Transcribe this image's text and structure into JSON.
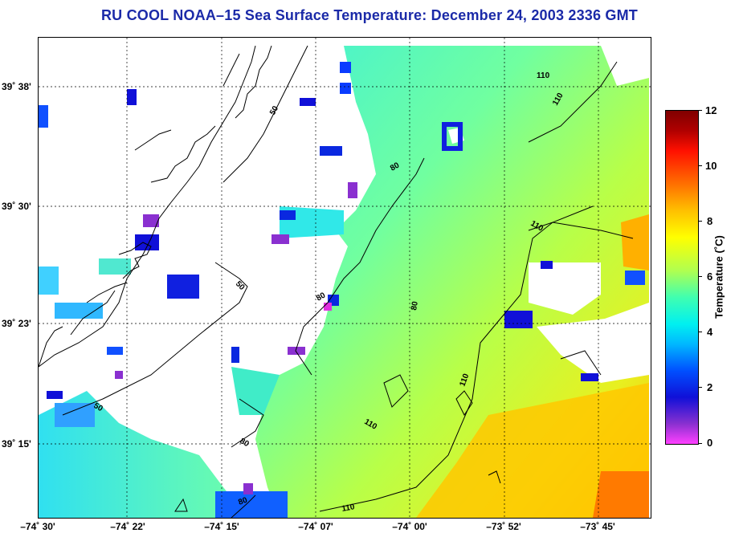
{
  "title": "RU COOL  NOAA–15  Sea Surface Temperature:  December 24, 2003 2336 GMT",
  "latitude_labels": [
    "39˚ 38'",
    "39˚ 30'",
    "39˚ 23'",
    "39˚ 15'"
  ],
  "longitude_labels": [
    "–74˚ 30'",
    "–74˚ 22'",
    "–74˚ 15'",
    "–74˚ 07'",
    "–74˚ 00'",
    "–73˚ 52'",
    "–73˚ 45'"
  ],
  "contour_labels": [
    "50",
    "50",
    "50",
    "80",
    "80",
    "80",
    "80",
    "80",
    "110",
    "110",
    "110",
    "110",
    "110"
  ],
  "colorbar": {
    "label": "Temperature (˚C)",
    "ticks": [
      "12",
      "10",
      "8",
      "6",
      "4",
      "2",
      "0"
    ],
    "min": 0,
    "max": 12
  },
  "colors": {
    "title": "#1b2aa8",
    "land_outline": "#000000",
    "grid": "#000000"
  }
}
